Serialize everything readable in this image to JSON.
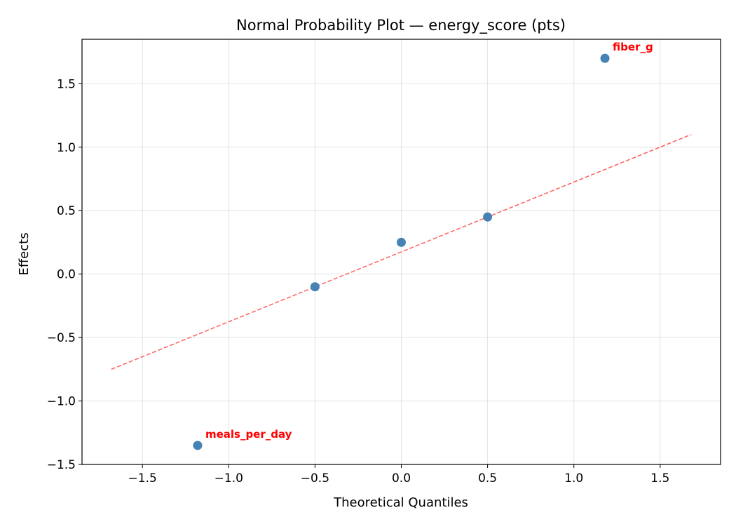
{
  "chart_data": {
    "type": "scatter",
    "title": "Normal Probability Plot — energy_score (pts)",
    "xlabel": "Theoretical Quantiles",
    "ylabel": "Effects",
    "xlim": [
      -1.85,
      1.85
    ],
    "ylim": [
      -1.5,
      1.85
    ],
    "grid": true,
    "xticks": [
      -1.5,
      -1.0,
      -0.5,
      0.0,
      0.5,
      1.0,
      1.5
    ],
    "xtick_labels": [
      "−1.5",
      "−1.0",
      "−0.5",
      "0.0",
      "0.5",
      "1.0",
      "1.5"
    ],
    "yticks": [
      -1.5,
      -1.0,
      -0.5,
      0.0,
      0.5,
      1.0,
      1.5
    ],
    "ytick_labels": [
      "−1.5",
      "−1.0",
      "−0.5",
      "0.0",
      "0.5",
      "1.0",
      "1.5"
    ],
    "points": [
      {
        "x": -1.18,
        "y": -1.35,
        "label": "meals_per_day"
      },
      {
        "x": -0.5,
        "y": -0.1
      },
      {
        "x": 0.0,
        "y": 0.25
      },
      {
        "x": 0.5,
        "y": 0.45
      },
      {
        "x": 1.18,
        "y": 1.7,
        "label": "fiber_g"
      }
    ],
    "reference_line": {
      "x": [
        -1.68,
        1.68
      ],
      "y": [
        -0.75,
        1.1
      ],
      "style": "dashed"
    },
    "colors": {
      "points": "#4682b4",
      "line": "#ff6666",
      "labels": "#ff0000"
    }
  }
}
